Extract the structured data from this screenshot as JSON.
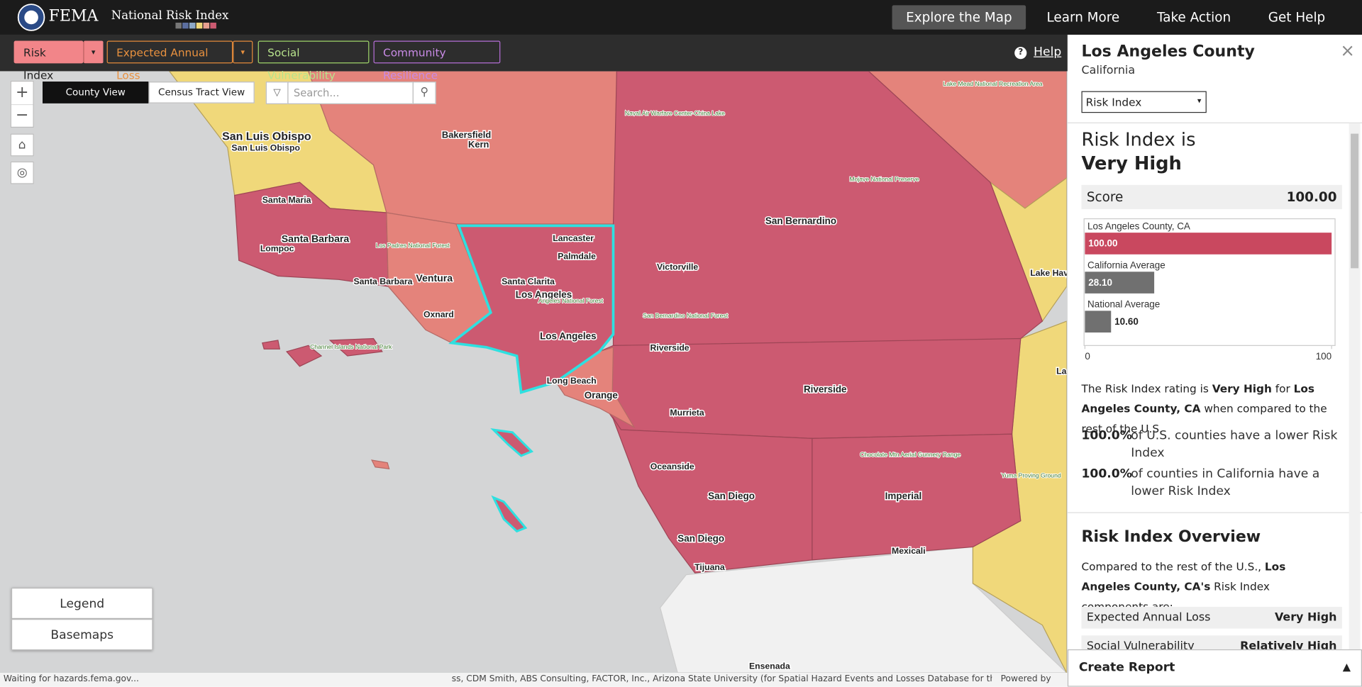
{
  "header": {
    "agency": "FEMA",
    "app_title": "National Risk Index",
    "nav": [
      "Explore the Map",
      "Learn More",
      "Take Action",
      "Get Help"
    ]
  },
  "toolbar": {
    "tabs": [
      "Risk Index",
      "Expected Annual Loss",
      "Social Vulnerability",
      "Community Resilience"
    ],
    "help": "Help"
  },
  "map": {
    "views": [
      "County View",
      "Census Tract View"
    ],
    "search_placeholder": "Search...",
    "labels": [
      "San Luis Obispo",
      "San Luis Obispo",
      "Bakersfield",
      "Kern",
      "Santa Maria",
      "Santa Barbara",
      "Lompoc",
      "Santa Barbara",
      "Ventura",
      "Oxnard",
      "Lancaster",
      "Palmdale",
      "Santa Clarita",
      "Los Angeles",
      "Los Angeles",
      "Long Beach",
      "Orange",
      "San Bernardino",
      "Victorville",
      "Riverside",
      "Riverside",
      "Murrieta",
      "Oceanside",
      "San Diego",
      "Imperial",
      "San Diego",
      "Tijuana",
      "Mexicali",
      "Ensenada",
      "Lake Hav",
      "La"
    ],
    "parks": [
      "Los Padres National Forest",
      "Channel Islands National Park",
      "Angeles National Forest",
      "Mojave National Preserve",
      "San Bernardino National Forest",
      "Lake Mead National Recreation Area",
      "Naval Air Warfare Center-China Lake",
      "Chocolate Mtn Aerial Gunnery Range",
      "Yuma Proving Ground"
    ],
    "buttons": [
      "Legend",
      "Basemaps"
    ],
    "status": "Waiting for hazards.fema.gov...",
    "attribution": "ss, CDM Smith, ABS Consulting, FACTOR, Inc., Arizona State University (for Spatial Hazard Events and Losses Database for the United States), ...",
    "powered_by": "Powered by Esri"
  },
  "panel": {
    "county": "Los Angeles County",
    "state": "California",
    "selector": "Risk Index",
    "headline": [
      "Risk Index is",
      "Very High"
    ],
    "score_label": "Score",
    "score": "100.00",
    "comparison": {
      "type": "bar",
      "categories": [
        "Los Angeles County, CA",
        "California Average",
        "National Average"
      ],
      "values": [
        100,
        28.1,
        10.6
      ],
      "value_labels": [
        "100.00",
        "28.10",
        "10.60"
      ],
      "colors": [
        "#c9485f",
        "#707070",
        "#707070"
      ],
      "xlim": [
        0,
        100
      ],
      "xticks": [
        0,
        100
      ]
    },
    "rating_text": [
      "The Risk Index rating is ",
      "Very High",
      " for ",
      "Los Angeles County, CA",
      " when compared to the rest of the U.S."
    ],
    "percentiles": [
      {
        "value": "100.0%",
        "text": "of U.S. counties have a lower Risk Index"
      },
      {
        "value": "100.0%",
        "text": "of counties in California have a lower Risk Index"
      }
    ],
    "overview": {
      "title": "Risk Index Overview",
      "intro": [
        "Compared to the rest of the U.S., ",
        "Los Angeles County, CA's",
        " Risk Index components are:"
      ],
      "components": [
        [
          "Expected Annual Loss",
          "Very High"
        ],
        [
          "Social Vulnerability",
          "Relatively High"
        ]
      ]
    },
    "create_report": "Create Report"
  }
}
